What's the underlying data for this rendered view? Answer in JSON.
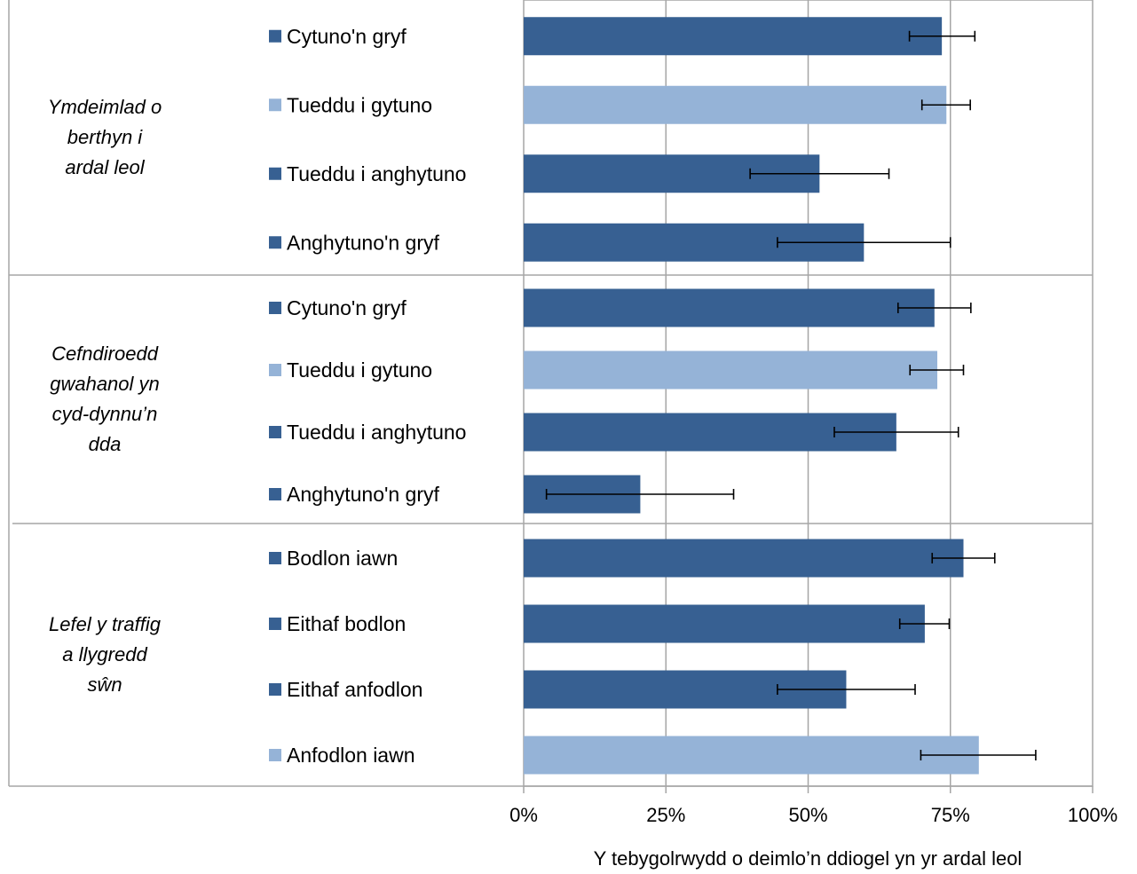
{
  "chart_data": {
    "type": "bar",
    "orientation": "horizontal",
    "xlabel": "Y tebygolrwydd o deimlo’n ddiogel yn yr ardal leol",
    "xlim": [
      0,
      100
    ],
    "x_ticks": [
      "0%",
      "25%",
      "50%",
      "75%",
      "100%"
    ],
    "grid": true,
    "colors": {
      "dark": "#376092",
      "light": "#95B3D7",
      "grid": "#A6A6A6",
      "error": "#000000"
    },
    "groups": [
      {
        "label": "Ymdeimlad o berthyn i ardal leol",
        "label_lines": [
          "Ymdeimlad o",
          "berthyn i",
          "ardal leol"
        ],
        "bars": [
          {
            "label": "Cytuno'n gryf",
            "value": 73.5,
            "err_low": 67.8,
            "err_high": 79.3,
            "color": "dark"
          },
          {
            "label": "Tueddu i gytuno",
            "value": 74.3,
            "err_low": 70.0,
            "err_high": 78.5,
            "color": "light"
          },
          {
            "label": "Tueddu i anghytuno",
            "value": 52.0,
            "err_low": 39.8,
            "err_high": 64.2,
            "color": "dark"
          },
          {
            "label": "Anghytuno'n gryf",
            "value": 59.8,
            "err_low": 44.6,
            "err_high": 75.0,
            "color": "dark"
          }
        ]
      },
      {
        "label": "Cefndiroedd gwahanol yn cyd-dynnu’n dda",
        "label_lines": [
          "Cefndiroedd",
          "gwahanol yn",
          "cyd-dynnu’n",
          "dda"
        ],
        "bars": [
          {
            "label": "Cytuno'n gryf",
            "value": 72.2,
            "err_low": 65.8,
            "err_high": 78.6,
            "color": "dark"
          },
          {
            "label": "Tueddu i gytuno",
            "value": 72.7,
            "err_low": 67.9,
            "err_high": 77.3,
            "color": "light"
          },
          {
            "label": "Tueddu i anghytuno",
            "value": 65.5,
            "err_low": 54.6,
            "err_high": 76.4,
            "color": "dark"
          },
          {
            "label": "Anghytuno'n gryf",
            "value": 20.5,
            "err_low": 4.0,
            "err_high": 36.9,
            "color": "dark"
          }
        ]
      },
      {
        "label": "Lefel y traffig a llygredd sŵn",
        "label_lines": [
          "Lefel y traffig",
          "a llygredd",
          "sŵn"
        ],
        "bars": [
          {
            "label": "Bodlon iawn",
            "value": 77.3,
            "err_low": 71.8,
            "err_high": 82.8,
            "color": "dark"
          },
          {
            "label": "Eithaf bodlon",
            "value": 70.5,
            "err_low": 66.1,
            "err_high": 74.8,
            "color": "dark"
          },
          {
            "label": "Eithaf anfodlon",
            "value": 56.7,
            "err_low": 44.6,
            "err_high": 68.8,
            "color": "dark"
          },
          {
            "label": "Anfodlon iawn",
            "value": 80.0,
            "err_low": 69.8,
            "err_high": 90.0,
            "color": "light"
          }
        ]
      }
    ]
  }
}
